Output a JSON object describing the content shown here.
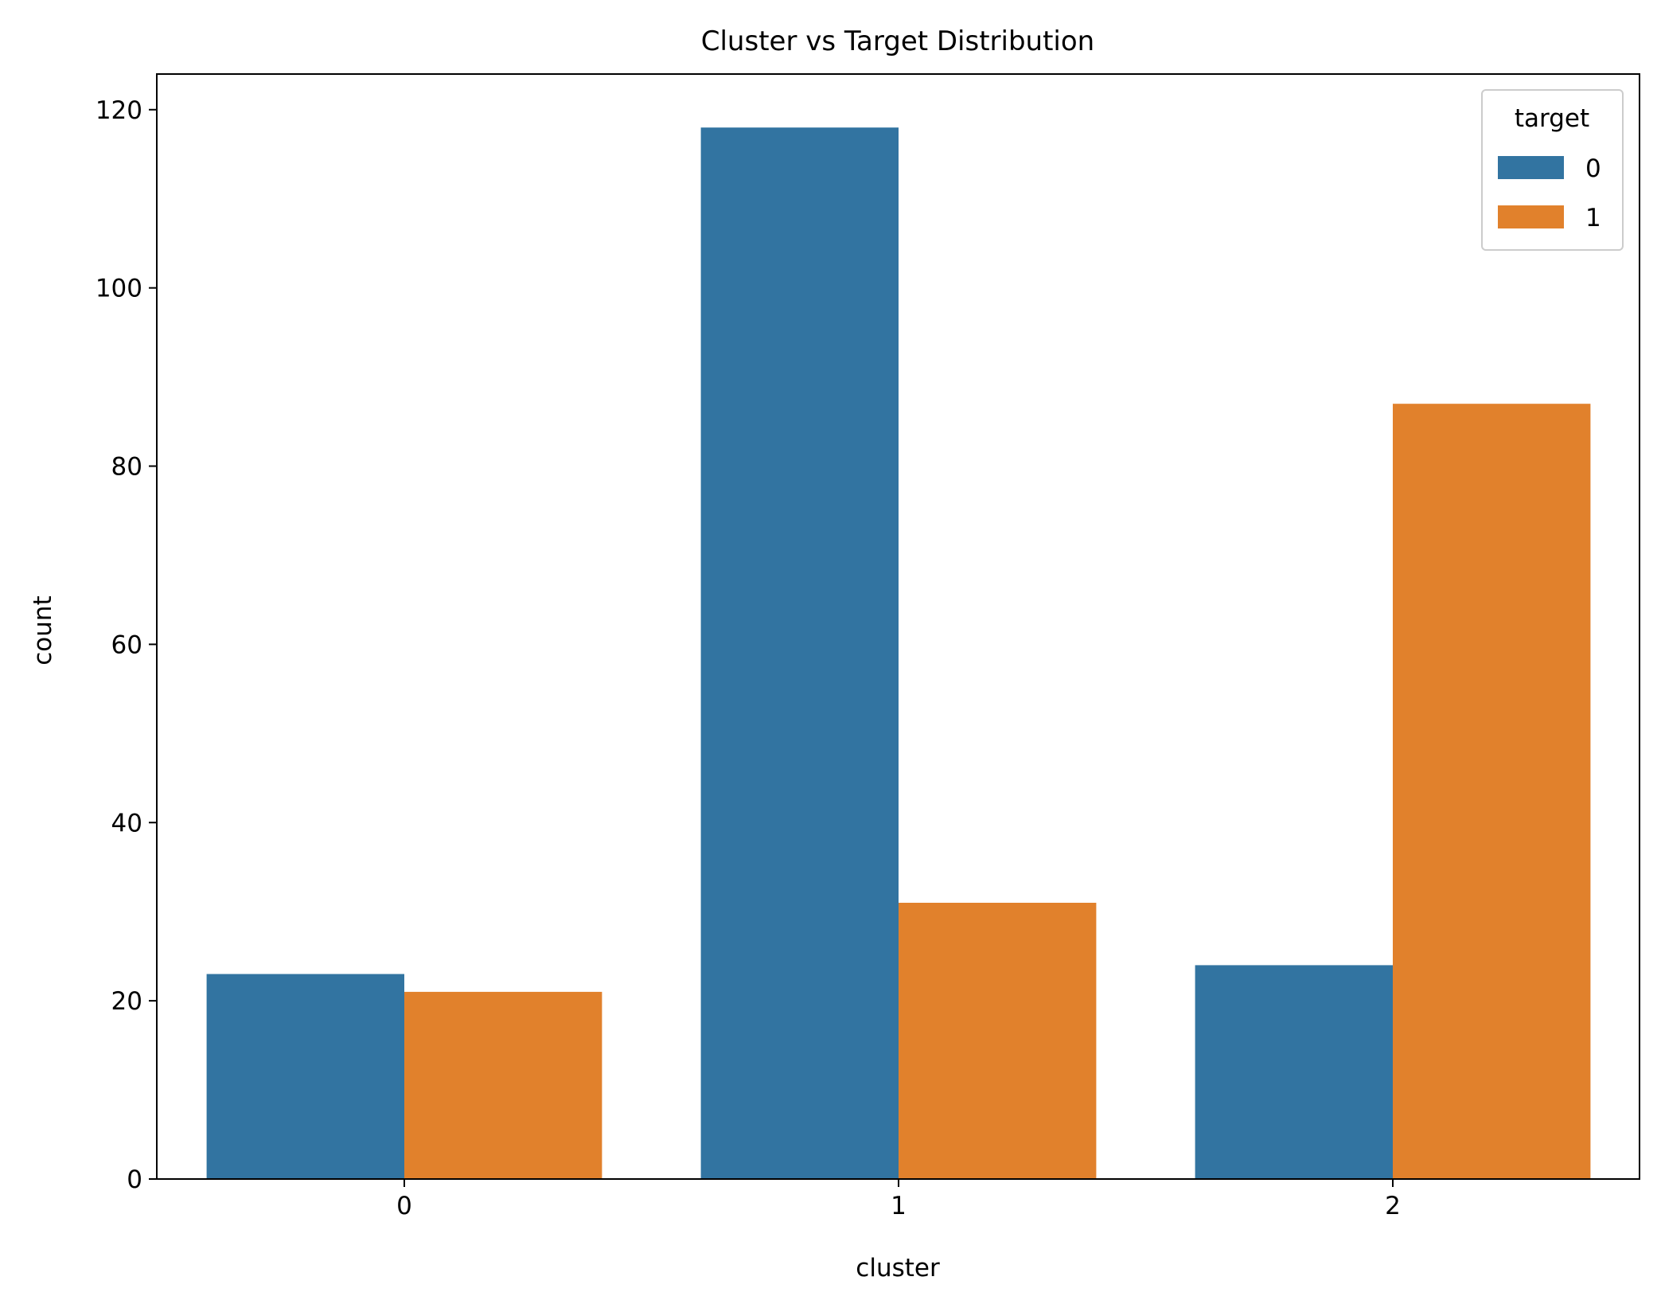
{
  "chart_data": {
    "type": "bar",
    "title": "Cluster vs Target Distribution",
    "xlabel": "cluster",
    "ylabel": "count",
    "categories": [
      "0",
      "1",
      "2"
    ],
    "series": [
      {
        "name": "0",
        "values": [
          23,
          118,
          24
        ],
        "color": "#3274a1"
      },
      {
        "name": "1",
        "values": [
          21,
          31,
          87
        ],
        "color": "#e1812c"
      }
    ],
    "ylim": [
      0,
      124
    ],
    "yticks": [
      0,
      20,
      40,
      60,
      80,
      100,
      120
    ],
    "grid": false,
    "legend": {
      "title": "target",
      "placement": "top-right",
      "entries": [
        "0",
        "1"
      ]
    }
  }
}
